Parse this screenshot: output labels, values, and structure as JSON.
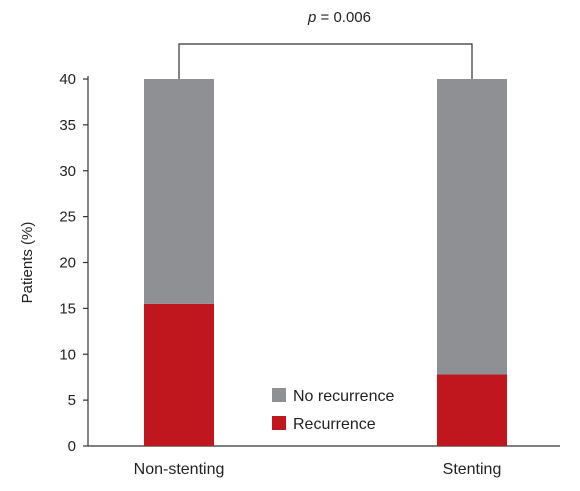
{
  "chart_data": {
    "type": "bar",
    "stacked": true,
    "categories": [
      "Non-stenting",
      "Stenting"
    ],
    "series": [
      {
        "name": "Recurrence",
        "values": [
          15.5,
          7.8
        ],
        "color": "#c0161e"
      },
      {
        "name": "No recurrence",
        "values": [
          24.5,
          32.2
        ],
        "color": "#8f9094"
      }
    ],
    "ylabel": "Patients (%)",
    "xlabel": "",
    "ylim": [
      0,
      40
    ],
    "yticks": [
      0,
      5,
      10,
      15,
      20,
      25,
      30,
      35,
      40
    ],
    "grid": false,
    "legend_position": "bottom-center",
    "legend_order": [
      "No recurrence",
      "Recurrence"
    ],
    "annotation": {
      "p_symbol": "p",
      "p_rest": " = 0.006"
    }
  }
}
